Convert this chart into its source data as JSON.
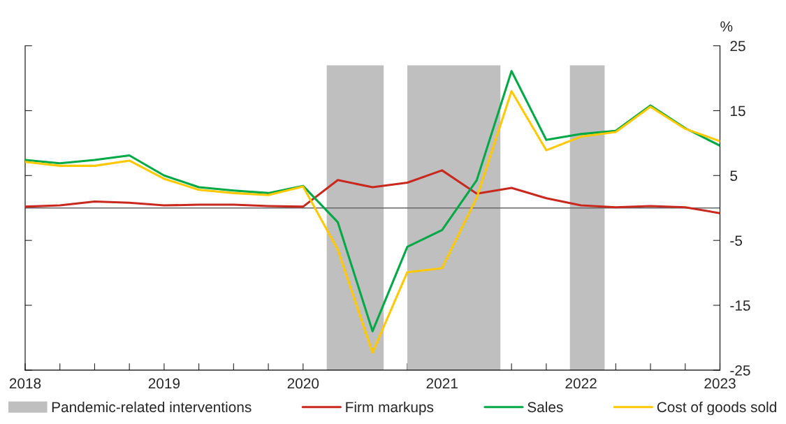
{
  "chart_data": {
    "type": "line",
    "ylabel": "%",
    "x": [
      2018,
      2018.25,
      2018.5,
      2018.75,
      2019,
      2019.25,
      2019.5,
      2019.75,
      2020,
      2020.25,
      2020.5,
      2020.75,
      2021,
      2021.25,
      2021.5,
      2021.75,
      2022,
      2022.25,
      2022.5,
      2022.75,
      2023
    ],
    "series": [
      {
        "name": "Firm markups",
        "color": "#c8281e",
        "values": [
          0.2,
          0.4,
          1.0,
          0.8,
          0.4,
          0.5,
          0.5,
          0.3,
          0.2,
          4.3,
          3.2,
          3.9,
          5.8,
          2.2,
          3.1,
          1.5,
          0.4,
          0.1,
          0.3,
          0.1,
          -0.8
        ]
      },
      {
        "name": "Sales",
        "color": "#00a846",
        "values": [
          7.4,
          6.9,
          7.4,
          8.1,
          5.0,
          3.2,
          2.7,
          2.3,
          3.4,
          -2.2,
          -19.0,
          -6.0,
          -3.4,
          4.3,
          21.1,
          10.5,
          11.4,
          11.9,
          15.8,
          12.3,
          9.6
        ]
      },
      {
        "name": "Cost of goods sold",
        "color": "#ffc800",
        "values": [
          7.1,
          6.5,
          6.5,
          7.3,
          4.5,
          2.8,
          2.3,
          2.0,
          3.3,
          -6.4,
          -22.3,
          -9.9,
          -9.3,
          1.6,
          18.0,
          8.9,
          11.0,
          11.7,
          15.6,
          12.2,
          10.3
        ]
      }
    ],
    "bands": [
      {
        "axis": "x",
        "from": 2020.17,
        "to": 2020.58,
        "label": "Pandemic-related interventions",
        "color": "#bfbfbf"
      },
      {
        "axis": "x",
        "from": 2020.75,
        "to": 2021.42,
        "color": "#bfbfbf"
      },
      {
        "axis": "x",
        "from": 2021.92,
        "to": 2022.17,
        "color": "#bfbfbf"
      }
    ],
    "ref_lines": [
      {
        "axis": "y",
        "value": 0,
        "color": "#666666"
      }
    ],
    "xlim": [
      2018,
      2023
    ],
    "xticks": [
      2018,
      {
        "value": 2018.25,
        "label": null
      },
      {
        "value": 2018.5,
        "label": null
      },
      {
        "value": 2018.75,
        "label": null
      },
      2019,
      {
        "value": 2019.25,
        "label": null
      },
      {
        "value": 2019.5,
        "label": null
      },
      {
        "value": 2019.75,
        "label": null
      },
      2020,
      {
        "value": 2020.25,
        "label": null
      },
      {
        "value": 2020.5,
        "label": null
      },
      {
        "value": 2020.75,
        "label": null
      },
      2021,
      {
        "value": 2021.25,
        "label": null
      },
      {
        "value": 2021.5,
        "label": null
      },
      {
        "value": 2021.75,
        "label": null
      },
      2022,
      {
        "value": 2022.25,
        "label": null
      },
      {
        "value": 2022.5,
        "label": null
      },
      {
        "value": 2022.75,
        "label": null
      },
      2023
    ],
    "ylim": [
      -25,
      25
    ],
    "yticks": [
      -25,
      -15,
      -5,
      5,
      15,
      25
    ],
    "grid": false,
    "legend": "bottom",
    "marker": "none",
    "line_style": "solid"
  }
}
